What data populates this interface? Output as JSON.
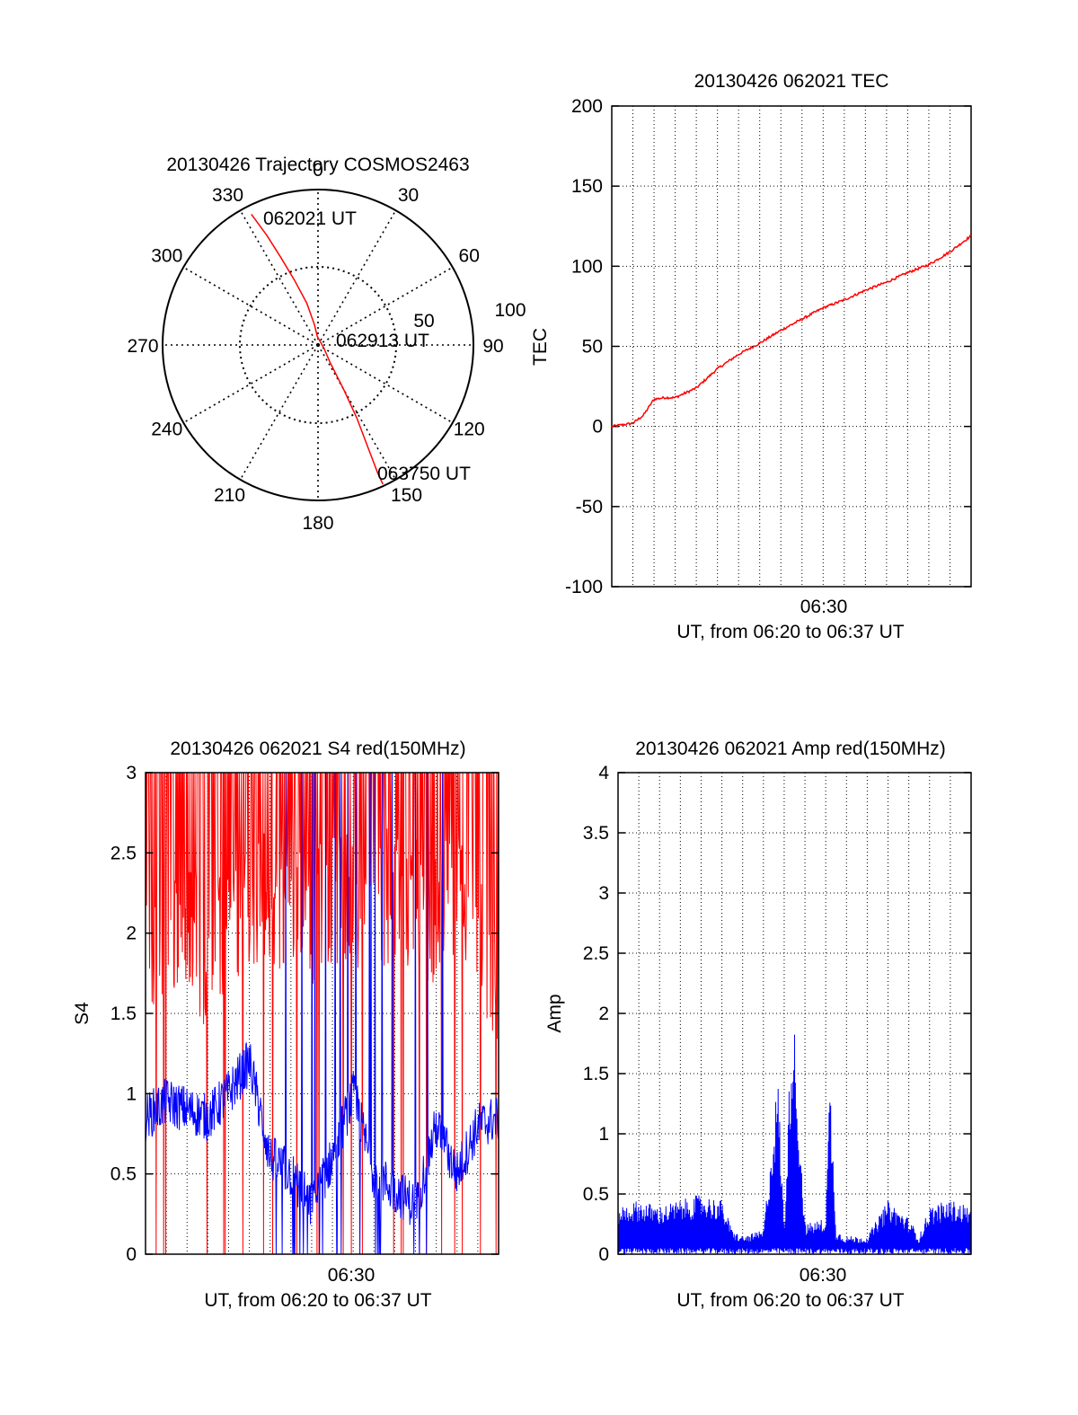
{
  "chart_data": [
    {
      "type": "polar",
      "title": "20130426 Trajectory COSMOS2463",
      "azimuth_labels": [
        "0",
        "30",
        "60",
        "90",
        "120",
        "150",
        "180",
        "210",
        "240",
        "270",
        "300",
        "330"
      ],
      "radial_labels": [
        "50",
        "100"
      ],
      "trajectory": {
        "color": "#ff0000",
        "start_label": "062021 UT",
        "mid_label": "062913 UT",
        "end_label": "063750 UT",
        "points": [
          [
            333,
            85
          ],
          [
            335,
            70
          ],
          [
            337,
            55
          ],
          [
            340,
            40
          ],
          [
            345,
            25
          ],
          [
            350,
            12
          ],
          [
            355,
            5
          ],
          [
            120,
            4
          ],
          [
            145,
            12
          ],
          [
            150,
            30
          ],
          [
            152,
            48
          ],
          [
            154,
            66
          ],
          [
            155,
            82
          ],
          [
            155,
            89
          ]
        ]
      }
    },
    {
      "type": "line",
      "title": "20130426 062021 TEC",
      "ylabel": "TEC",
      "xlabel": "UT, from 06:20 to 06:37 UT",
      "xtick_label": "06:30",
      "ylim": [
        -100,
        200
      ],
      "yticks": [
        "-100",
        "-50",
        "0",
        "50",
        "100",
        "150",
        "200"
      ],
      "grid": true,
      "series": [
        {
          "color": "#ff0000",
          "x": [
            0,
            1,
            1.5,
            2,
            2.5,
            3,
            4,
            5,
            6,
            7,
            8,
            9,
            10,
            11,
            12,
            13,
            14,
            15,
            16,
            17
          ],
          "y": [
            0,
            2,
            7,
            17,
            18,
            18,
            24,
            36,
            45,
            52,
            60,
            67,
            74,
            79,
            85,
            90,
            96,
            101,
            109,
            119
          ]
        }
      ]
    },
    {
      "type": "line",
      "title": "20130426 062021 S4 red(150MHz)",
      "ylabel": "S4",
      "xlabel": "UT, from 06:20 to 06:37 UT",
      "xtick_label": "06:30",
      "ylim": [
        0,
        3
      ],
      "yticks": [
        "0",
        "0.5",
        "1",
        "1.5",
        "2",
        "2.5",
        "3"
      ],
      "grid": true,
      "series": [
        {
          "color": "#ff0000",
          "x": [
            0,
            1,
            2,
            3,
            4,
            5,
            6,
            7,
            8,
            9,
            10,
            11,
            12,
            13,
            14,
            15,
            16,
            17
          ],
          "y": [
            2.5,
            2.3,
            2.6,
            2.2,
            2.5,
            2.7,
            2.6,
            2.7,
            2.5,
            2.7,
            2.6,
            2.6,
            2.7,
            2.6,
            2.5,
            2.7,
            2.5,
            2.2
          ]
        },
        {
          "color": "#0000ff",
          "x": [
            0,
            1,
            2,
            3,
            4,
            5,
            6,
            7,
            8,
            9,
            10,
            11,
            12,
            13,
            14,
            15,
            16,
            17
          ],
          "y": [
            0.85,
            0.95,
            0.9,
            0.85,
            1.0,
            1.2,
            0.6,
            0.5,
            0.3,
            0.6,
            1.0,
            0.5,
            0.4,
            0.3,
            0.8,
            0.5,
            0.8,
            0.85
          ]
        }
      ]
    },
    {
      "type": "line",
      "title": "20130426 062021 Amp red(150MHz)",
      "ylabel": "Amp",
      "xlabel": "UT, from 06:20 to 06:37 UT",
      "xtick_label": "06:30",
      "ylim": [
        0,
        4
      ],
      "yticks": [
        "0",
        "0.5",
        "1",
        "1.5",
        "2",
        "2.5",
        "3",
        "3.5",
        "4"
      ],
      "grid": true,
      "series": [
        {
          "color": "#0000ff",
          "x": [
            0,
            1,
            2,
            3,
            4,
            5,
            5.5,
            6,
            7,
            7.7,
            8,
            8.4,
            9,
            10,
            10.2,
            10.5,
            11,
            12,
            13,
            14,
            14.5,
            15,
            16,
            17
          ],
          "y": [
            0.4,
            0.45,
            0.4,
            0.45,
            0.5,
            0.45,
            0.2,
            0.15,
            0.2,
            1.5,
            0.2,
            2.2,
            0.25,
            0.3,
            1.5,
            0.2,
            0.15,
            0.15,
            0.45,
            0.3,
            0.15,
            0.4,
            0.45,
            0.4
          ]
        }
      ]
    }
  ]
}
